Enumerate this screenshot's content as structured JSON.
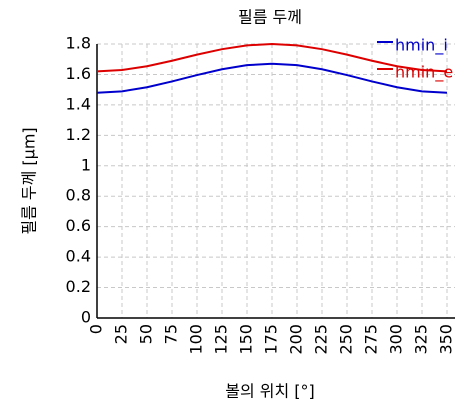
{
  "chart_data": {
    "type": "line",
    "title": "필름 두께",
    "xlabel": "볼의 위치 [°]",
    "ylabel": "필름 두께 [μm]",
    "x": [
      0,
      25,
      50,
      75,
      100,
      125,
      150,
      175,
      200,
      225,
      250,
      275,
      300,
      325,
      350
    ],
    "series": [
      {
        "name": "hmin_i",
        "color": "#0000cc",
        "values": [
          1.48,
          1.489,
          1.516,
          1.554,
          1.596,
          1.634,
          1.661,
          1.67,
          1.661,
          1.634,
          1.596,
          1.554,
          1.516,
          1.489,
          1.48
        ]
      },
      {
        "name": "hmin_e",
        "color": "#dd0000",
        "values": [
          1.62,
          1.629,
          1.654,
          1.69,
          1.73,
          1.766,
          1.791,
          1.8,
          1.791,
          1.766,
          1.73,
          1.69,
          1.654,
          1.629,
          1.62
        ]
      }
    ],
    "xlim": [
      0,
      358
    ],
    "ylim": [
      0,
      1.8
    ],
    "xticks": [
      0,
      25,
      50,
      75,
      100,
      125,
      150,
      175,
      200,
      225,
      250,
      275,
      300,
      325,
      350
    ],
    "yticks": [
      0,
      0.2,
      0.4,
      0.6,
      0.8,
      1,
      1.2,
      1.4,
      1.6,
      1.8
    ],
    "grid": true,
    "legend": "upper right"
  }
}
